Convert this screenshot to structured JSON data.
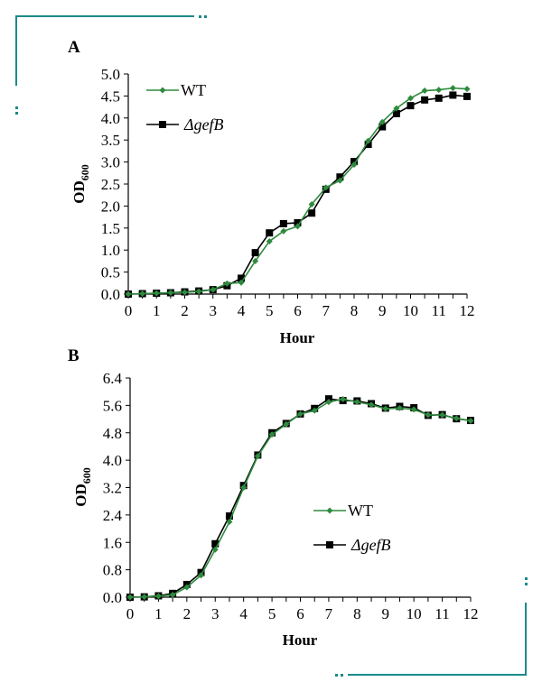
{
  "colors": {
    "wt": "#2e8b3e",
    "gefb": "#000000",
    "frame": "#1a8a8a"
  },
  "chart_data": [
    {
      "type": "line",
      "panel": "A",
      "xlabel": "Hour",
      "ylabel": "OD",
      "ylabel_sub": "600",
      "xlim": [
        0,
        12
      ],
      "ylim": [
        0,
        5
      ],
      "xticks": [
        "0",
        "1",
        "2",
        "3",
        "4",
        "5",
        "6",
        "7",
        "8",
        "9",
        "10",
        "11",
        "12"
      ],
      "yticks": [
        "0.0",
        "0.5",
        "1.0",
        "1.5",
        "2.0",
        "2.5",
        "3.0",
        "3.5",
        "4.0",
        "4.5",
        "5.0"
      ],
      "legend": "top-left",
      "grid": false,
      "x": [
        0,
        0.5,
        1,
        1.5,
        2,
        2.5,
        3,
        3.5,
        4,
        4.5,
        5,
        5.5,
        6,
        6.5,
        7,
        7.5,
        8,
        8.5,
        9,
        9.5,
        10,
        10.5,
        11,
        11.5,
        12
      ],
      "series": [
        {
          "name": "WT",
          "marker": "diamond",
          "values": [
            0,
            0.01,
            0.02,
            0.03,
            0.04,
            0.06,
            0.1,
            0.24,
            0.26,
            0.75,
            1.2,
            1.43,
            1.54,
            2.04,
            2.42,
            2.58,
            2.94,
            3.48,
            3.91,
            4.22,
            4.45,
            4.62,
            4.64,
            4.68,
            4.66
          ]
        },
        {
          "name": "ΔgefB",
          "marker": "square",
          "values": [
            0,
            0.01,
            0.02,
            0.03,
            0.05,
            0.07,
            0.1,
            0.19,
            0.36,
            0.94,
            1.39,
            1.6,
            1.62,
            1.84,
            2.38,
            2.66,
            3.01,
            3.4,
            3.8,
            4.1,
            4.28,
            4.41,
            4.45,
            4.52,
            4.49
          ]
        }
      ]
    },
    {
      "type": "line",
      "panel": "B",
      "xlabel": "Hour",
      "ylabel": "OD",
      "ylabel_sub": "600",
      "xlim": [
        0,
        12
      ],
      "ylim": [
        0,
        6.4
      ],
      "xticks": [
        "0",
        "1",
        "2",
        "3",
        "4",
        "5",
        "6",
        "7",
        "8",
        "9",
        "10",
        "11",
        "12"
      ],
      "yticks": [
        "0.0",
        "0.8",
        "1.6",
        "2.4",
        "3.2",
        "4.0",
        "4.8",
        "5.6",
        "6.4"
      ],
      "legend": "center-right",
      "grid": false,
      "x": [
        0,
        0.5,
        1,
        1.5,
        2,
        2.5,
        3,
        3.5,
        4,
        4.5,
        5,
        5.5,
        6,
        6.5,
        7,
        7.5,
        8,
        8.5,
        9,
        9.5,
        10,
        10.5,
        11,
        11.5,
        12
      ],
      "series": [
        {
          "name": "WT",
          "marker": "diamond",
          "values": [
            0,
            0.01,
            0.03,
            0.07,
            0.29,
            0.64,
            1.39,
            2.2,
            3.2,
            4.12,
            4.75,
            5.05,
            5.35,
            5.45,
            5.7,
            5.78,
            5.7,
            5.62,
            5.5,
            5.52,
            5.48,
            5.32,
            5.32,
            5.22,
            5.15
          ]
        },
        {
          "name": "ΔgefB",
          "marker": "square",
          "values": [
            0,
            0.01,
            0.04,
            0.11,
            0.37,
            0.72,
            1.56,
            2.37,
            3.26,
            4.15,
            4.8,
            5.07,
            5.35,
            5.51,
            5.79,
            5.74,
            5.73,
            5.65,
            5.52,
            5.57,
            5.53,
            5.31,
            5.33,
            5.21,
            5.16
          ]
        }
      ]
    }
  ]
}
